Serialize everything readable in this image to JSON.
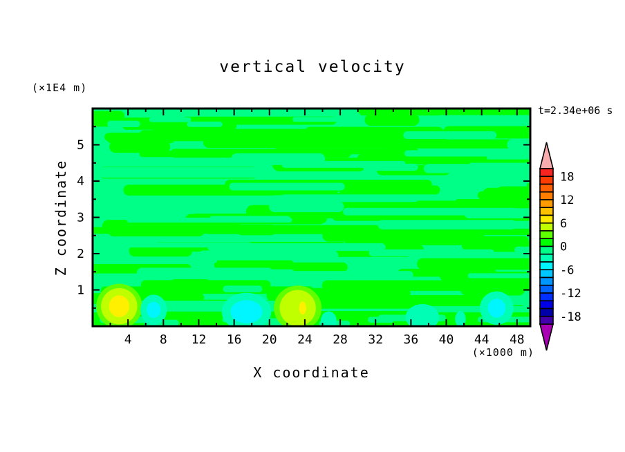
{
  "title": "vertical velocity",
  "time_label": "t=2.34e+06 s",
  "x_axis": {
    "label": "X coordinate",
    "units": "(×1000 m)",
    "ticks": [
      4,
      8,
      12,
      16,
      20,
      24,
      28,
      32,
      36,
      40,
      44,
      48
    ],
    "minor_step": 2,
    "range": [
      0,
      49.5
    ]
  },
  "y_axis": {
    "label": "Z coordinate",
    "units": "(×1E4 m)",
    "ticks": [
      1,
      2,
      3,
      4,
      5
    ],
    "minor_step": 0.5,
    "range": [
      0,
      6
    ]
  },
  "colorbar": {
    "labels": [
      18,
      12,
      6,
      0,
      -6,
      -12,
      -18
    ],
    "level_min": -20,
    "level_max": 20,
    "interval": 2,
    "colors_top_to_bottom": [
      "#F7241F",
      "#FB3D04",
      "#FF6000",
      "#FF7E00",
      "#FF9C00",
      "#FFC100",
      "#FFE800",
      "#BFFF00",
      "#60FF00",
      "#00FF00",
      "#00FF87",
      "#00FFB4",
      "#00F6FF",
      "#00C8FF",
      "#0096FF",
      "#0064FF",
      "#0030FF",
      "#0000E6",
      "#0000AA",
      "#4400AA"
    ],
    "above_color": "#F7ADAD",
    "below_color": "#AA00B4"
  },
  "chart_data": {
    "type": "filled_contour",
    "title": "vertical velocity",
    "xlabel": "X coordinate (×1000 m)",
    "ylabel": "Z coordinate (×1E4 m)",
    "time": "t=2.34e+06 s",
    "xlim": [
      0,
      49.5
    ],
    "ylim": [
      0,
      6
    ],
    "contour_interval": 2,
    "levels": [
      -20,
      -18,
      -16,
      -14,
      -12,
      -10,
      -8,
      -6,
      -4,
      -2,
      0,
      2,
      4,
      6,
      8,
      10,
      12,
      14,
      16,
      18,
      20
    ],
    "field_colors": {
      "band_neg": "#00FF87",
      "band_pos": "#00FF00",
      "bottom_strip": "#00FF00"
    },
    "background_bands": "interleaved horizontal streaks of -2..0 and 0..2 values over whole domain",
    "features": [
      {
        "name": "updraft",
        "x": 3.0,
        "z": 0.55,
        "value_range": "2 to 8",
        "layers": [
          {
            "rx": 2.6,
            "rz": 0.62,
            "color": "#60FF00"
          },
          {
            "rx": 2.05,
            "rz": 0.5,
            "color": "#BFFF00"
          },
          {
            "rx": 1.15,
            "rz": 0.3,
            "color": "#FFF000"
          }
        ]
      },
      {
        "name": "downdraft",
        "x": 6.9,
        "z": 0.45,
        "value_range": "-6 to -2",
        "layers": [
          {
            "rx": 1.5,
            "rz": 0.42,
            "color": "#00FFB4"
          },
          {
            "rx": 0.8,
            "rz": 0.22,
            "color": "#00F6FF"
          }
        ]
      },
      {
        "name": "downdraft",
        "x": 17.4,
        "z": 0.4,
        "value_range": "-6 to -2",
        "layers": [
          {
            "rx": 2.8,
            "rz": 0.52,
            "color": "#00FFB4"
          },
          {
            "rx": 1.8,
            "rz": 0.32,
            "color": "#00F6FF"
          }
        ]
      },
      {
        "name": "updraft",
        "x": 23.2,
        "z": 0.5,
        "value_range": "2 to 8",
        "layers": [
          {
            "rx": 2.7,
            "rz": 0.62,
            "color": "#60FF00"
          },
          {
            "rx": 2.05,
            "rz": 0.5,
            "color": "#BFFF00"
          },
          {
            "rx": 0.4,
            "rz": 0.18,
            "color": "#FFF000",
            "dx": 0.55
          }
        ]
      },
      {
        "name": "downdraft",
        "x": 26.7,
        "z": 0.15,
        "value_range": "-4 to -2",
        "layers": [
          {
            "rx": 0.9,
            "rz": 0.26,
            "color": "#00FFB4"
          }
        ]
      },
      {
        "name": "downdraft",
        "x": 37.3,
        "z": 0.25,
        "value_range": "-4 to -2",
        "layers": [
          {
            "rx": 1.9,
            "rz": 0.36,
            "color": "#00FFB4"
          }
        ]
      },
      {
        "name": "downdraft",
        "x": 41.6,
        "z": 0.2,
        "value_range": "-4 to -2",
        "layers": [
          {
            "rx": 0.6,
            "rz": 0.22,
            "color": "#00FFB4"
          }
        ]
      },
      {
        "name": "downdraft",
        "x": 45.7,
        "z": 0.5,
        "value_range": "-6 to -2",
        "layers": [
          {
            "rx": 1.9,
            "rz": 0.46,
            "color": "#00FFB4"
          },
          {
            "rx": 1.0,
            "rz": 0.26,
            "color": "#00F6FF"
          }
        ]
      }
    ]
  }
}
